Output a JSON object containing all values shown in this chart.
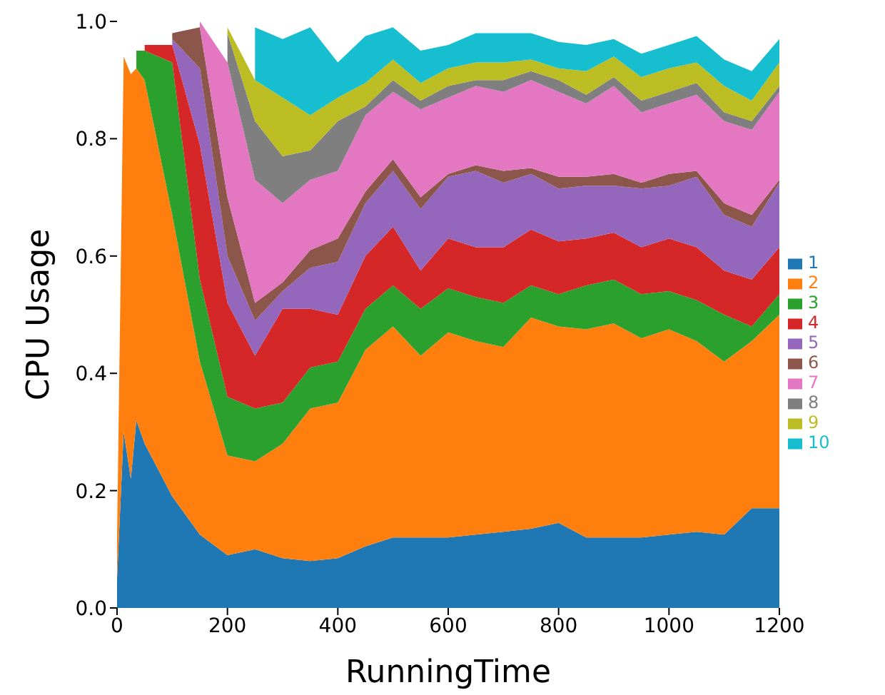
{
  "chart_data": {
    "type": "area",
    "stacked": true,
    "xlabel": "RunningTime",
    "ylabel": "CPU Usage",
    "x": [
      0,
      12,
      25,
      35,
      50,
      100,
      150,
      200,
      250,
      300,
      350,
      400,
      450,
      500,
      550,
      600,
      650,
      700,
      750,
      800,
      850,
      900,
      950,
      1000,
      1050,
      1100,
      1150,
      1200
    ],
    "xlim": [
      0,
      1200
    ],
    "xticks": [
      0,
      200,
      400,
      600,
      800,
      1000,
      1200
    ],
    "ylim": [
      0,
      1
    ],
    "yticks": [
      {
        "value": 0,
        "label": "0.0"
      },
      {
        "value": 0.2,
        "label": "0.2"
      },
      {
        "value": 0.4,
        "label": "0.4"
      },
      {
        "value": 0.6,
        "label": "0.6"
      },
      {
        "value": 0.8,
        "label": "0.8"
      },
      {
        "value": 1,
        "label": "1.0"
      }
    ],
    "grid": false,
    "legend": "right",
    "series": [
      {
        "name": "1",
        "color": "#1f77b4",
        "values": [
          0.05,
          0.3,
          0.22,
          0.32,
          0.28,
          0.19,
          0.125,
          0.09,
          0.1,
          0.085,
          0.08,
          0.085,
          0.105,
          0.12,
          0.12,
          0.12,
          0.125,
          0.13,
          0.135,
          0.145,
          0.12,
          0.12,
          0.12,
          0.125,
          0.13,
          0.125,
          0.17,
          0.17
        ]
      },
      {
        "name": "2",
        "color": "#ff7f0e",
        "values": [
          0.07,
          0.64,
          0.69,
          0.6,
          0.62,
          0.48,
          0.295,
          0.17,
          0.15,
          0.195,
          0.26,
          0.265,
          0.335,
          0.36,
          0.31,
          0.35,
          0.33,
          0.315,
          0.36,
          0.335,
          0.355,
          0.365,
          0.34,
          0.35,
          0.325,
          0.295,
          0.285,
          0.33
        ]
      },
      {
        "name": "3",
        "color": "#2ca02c",
        "values": [
          null,
          null,
          null,
          0.03,
          0.05,
          0.26,
          0.14,
          0.1,
          0.09,
          0.07,
          0.07,
          0.07,
          0.07,
          0.07,
          0.08,
          0.075,
          0.075,
          0.075,
          0.055,
          0.055,
          0.075,
          0.075,
          0.075,
          0.065,
          0.07,
          0.08,
          0.025,
          0.035
        ]
      },
      {
        "name": "4",
        "color": "#d62728",
        "values": [
          null,
          null,
          null,
          null,
          0.01,
          0.03,
          0.23,
          0.16,
          0.09,
          0.16,
          0.1,
          0.08,
          0.09,
          0.1,
          0.065,
          0.085,
          0.085,
          0.095,
          0.095,
          0.09,
          0.08,
          0.08,
          0.08,
          0.09,
          0.09,
          0.075,
          0.08,
          0.08
        ]
      },
      {
        "name": "5",
        "color": "#9467bd",
        "values": [
          null,
          null,
          null,
          null,
          null,
          0.01,
          0.13,
          0.08,
          0.06,
          0.03,
          0.07,
          0.09,
          0.09,
          0.095,
          0.105,
          0.105,
          0.13,
          0.11,
          0.095,
          0.09,
          0.09,
          0.08,
          0.1,
          0.09,
          0.12,
          0.095,
          0.09,
          0.11
        ]
      },
      {
        "name": "6",
        "color": "#8c564b",
        "values": [
          null,
          null,
          null,
          null,
          null,
          0.01,
          0.07,
          0.1,
          0.03,
          0.015,
          0.03,
          0.04,
          0.02,
          0.02,
          0.02,
          0.005,
          0.01,
          0.02,
          0.01,
          0.02,
          0.015,
          0.02,
          0.01,
          0.02,
          0.01,
          0.02,
          0.02,
          0.005
        ]
      },
      {
        "name": "7",
        "color": "#e377c2",
        "values": [
          null,
          null,
          null,
          null,
          null,
          null,
          0.01,
          0.23,
          0.21,
          0.135,
          0.12,
          0.115,
          0.13,
          0.115,
          0.15,
          0.13,
          0.135,
          0.135,
          0.15,
          0.145,
          0.125,
          0.15,
          0.12,
          0.12,
          0.13,
          0.14,
          0.145,
          0.15
        ]
      },
      {
        "name": "8",
        "color": "#7f7f7f",
        "values": [
          null,
          null,
          null,
          null,
          null,
          null,
          null,
          0.05,
          0.1,
          0.08,
          0.05,
          0.085,
          0.015,
          0.02,
          0.015,
          0.02,
          0.01,
          0.02,
          0.015,
          0.02,
          0.015,
          0.015,
          0.02,
          0.02,
          0.02,
          0.015,
          0.015,
          0.01
        ]
      },
      {
        "name": "9",
        "color": "#bcbd22",
        "values": [
          null,
          null,
          null,
          null,
          null,
          null,
          null,
          0.01,
          0.07,
          0.1,
          0.06,
          0.04,
          0.04,
          0.035,
          0.03,
          0.03,
          0.03,
          0.03,
          0.02,
          0.02,
          0.04,
          0.035,
          0.04,
          0.04,
          0.035,
          0.045,
          0.035,
          0.04
        ]
      },
      {
        "name": "10",
        "color": "#17becf",
        "values": [
          null,
          null,
          null,
          null,
          null,
          null,
          null,
          null,
          0.09,
          0.1,
          0.15,
          0.06,
          0.08,
          0.055,
          0.055,
          0.04,
          0.05,
          0.05,
          0.045,
          0.045,
          0.045,
          0.03,
          0.04,
          0.04,
          0.045,
          0.045,
          0.05,
          0.04
        ]
      }
    ]
  }
}
